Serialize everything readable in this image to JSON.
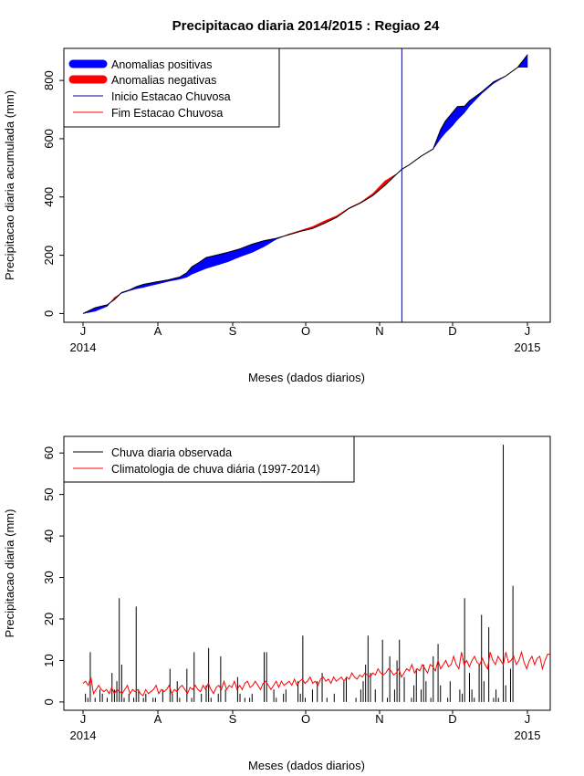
{
  "colors": {
    "positive": "#0000ff",
    "negative": "#ff0000",
    "rain_start": "#00008b",
    "rain_end": "#ff0000",
    "observed": "#000000",
    "climatology": "#ff0000"
  },
  "chart_data": [
    {
      "type": "area",
      "title": "Precipitacao diaria 2014/2015 : Regiao 24",
      "xlabel": "Meses (dados diarios)",
      "ylabel": "Precipitacao diaria acumulada (mm)",
      "x_ticks": [
        "J",
        "A",
        "S",
        "O",
        "N",
        "D",
        "J"
      ],
      "year_labels": [
        "2014",
        "2015"
      ],
      "ylim": [
        -30,
        910
      ],
      "y_ticks": [
        0,
        200,
        400,
        600,
        800
      ],
      "grid": false,
      "legend_position": "top-left",
      "legend": [
        "Anomalias positivas",
        "Anomalias negativas",
        "Inicio Estacao Chuvosa",
        "Fim Estacao Chuvosa"
      ],
      "days_total": 184,
      "rain_start_day": 132,
      "observed_cumulative": [
        [
          0,
          0
        ],
        [
          5,
          20
        ],
        [
          10,
          30
        ],
        [
          13,
          48
        ],
        [
          16,
          72
        ],
        [
          19,
          80
        ],
        [
          22,
          92
        ],
        [
          25,
          100
        ],
        [
          30,
          108
        ],
        [
          35,
          115
        ],
        [
          40,
          125
        ],
        [
          43,
          140
        ],
        [
          45,
          160
        ],
        [
          48,
          175
        ],
        [
          51,
          192
        ],
        [
          55,
          200
        ],
        [
          60,
          210
        ],
        [
          65,
          222
        ],
        [
          70,
          238
        ],
        [
          75,
          250
        ],
        [
          80,
          258
        ],
        [
          85,
          270
        ],
        [
          90,
          282
        ],
        [
          95,
          292
        ],
        [
          100,
          310
        ],
        [
          105,
          330
        ],
        [
          110,
          360
        ],
        [
          115,
          380
        ],
        [
          120,
          405
        ],
        [
          125,
          440
        ],
        [
          130,
          480
        ],
        [
          132,
          495
        ],
        [
          135,
          510
        ],
        [
          140,
          540
        ],
        [
          145,
          565
        ],
        [
          148,
          630
        ],
        [
          150,
          660
        ],
        [
          153,
          690
        ],
        [
          155,
          710
        ],
        [
          158,
          712
        ],
        [
          160,
          730
        ],
        [
          165,
          760
        ],
        [
          170,
          795
        ],
        [
          175,
          815
        ],
        [
          180,
          845
        ],
        [
          184,
          888
        ]
      ],
      "climatology_cumulative": [
        [
          0,
          0
        ],
        [
          5,
          8
        ],
        [
          10,
          25
        ],
        [
          13,
          55
        ],
        [
          16,
          70
        ],
        [
          19,
          78
        ],
        [
          22,
          85
        ],
        [
          25,
          90
        ],
        [
          30,
          100
        ],
        [
          35,
          110
        ],
        [
          40,
          118
        ],
        [
          43,
          125
        ],
        [
          45,
          135
        ],
        [
          48,
          145
        ],
        [
          51,
          155
        ],
        [
          55,
          165
        ],
        [
          60,
          178
        ],
        [
          65,
          195
        ],
        [
          70,
          210
        ],
        [
          75,
          230
        ],
        [
          80,
          255
        ],
        [
          85,
          272
        ],
        [
          90,
          285
        ],
        [
          95,
          298
        ],
        [
          100,
          318
        ],
        [
          105,
          335
        ],
        [
          110,
          362
        ],
        [
          115,
          382
        ],
        [
          120,
          412
        ],
        [
          125,
          455
        ],
        [
          130,
          480
        ],
        [
          132,
          495
        ],
        [
          135,
          510
        ],
        [
          140,
          540
        ],
        [
          145,
          565
        ],
        [
          148,
          600
        ],
        [
          150,
          620
        ],
        [
          153,
          645
        ],
        [
          155,
          665
        ],
        [
          158,
          690
        ],
        [
          160,
          712
        ],
        [
          165,
          755
        ],
        [
          170,
          790
        ],
        [
          175,
          815
        ],
        [
          180,
          845
        ],
        [
          184,
          845
        ]
      ]
    },
    {
      "type": "line",
      "xlabel": "Meses (dados diarios)",
      "ylabel": "Precipitacao diaria (mm)",
      "x_ticks": [
        "J",
        "A",
        "S",
        "O",
        "N",
        "D",
        "J"
      ],
      "year_labels": [
        "2014",
        "2015"
      ],
      "ylim": [
        -2,
        64
      ],
      "y_ticks": [
        0,
        10,
        20,
        30,
        40,
        50,
        60
      ],
      "grid": false,
      "legend_position": "top-left",
      "legend": [
        "Chuva diaria observada",
        "Climatologia de chuva diária (1997-2014)"
      ],
      "days_total": 184,
      "observed_daily": [
        0,
        2,
        1,
        12,
        0,
        1,
        0,
        3,
        2,
        0,
        1,
        0,
        7,
        3,
        5,
        25,
        9,
        1,
        0,
        2,
        0,
        1,
        23,
        3,
        0,
        1,
        2,
        0,
        0,
        1,
        1,
        0,
        0,
        3,
        0,
        0,
        8,
        2,
        0,
        5,
        1,
        0,
        0,
        8,
        0,
        1,
        12,
        0,
        0,
        2,
        0,
        4,
        13,
        1,
        0,
        0,
        2,
        11,
        0,
        3,
        0,
        0,
        0,
        0,
        6,
        2,
        0,
        1,
        0,
        1,
        2,
        0,
        0,
        0,
        0,
        12,
        12,
        0,
        0,
        3,
        1,
        0,
        0,
        2,
        3,
        0,
        0,
        0,
        0,
        5,
        2,
        16,
        1,
        0,
        0,
        3,
        0,
        5,
        0,
        7,
        0,
        1,
        0,
        0,
        2,
        0,
        0,
        0,
        5,
        6,
        0,
        0,
        0,
        1,
        0,
        3,
        5,
        9,
        16,
        7,
        0,
        3,
        0,
        0,
        15,
        0,
        1,
        11,
        0,
        3,
        10,
        15,
        0,
        6,
        0,
        0,
        1,
        4,
        8,
        0,
        3,
        9,
        5,
        0,
        1,
        11,
        0,
        14,
        4,
        0,
        0,
        1,
        5,
        0,
        0,
        0,
        3,
        2,
        25,
        0,
        7,
        3,
        1,
        0,
        9,
        21,
        5,
        0,
        18,
        0,
        1,
        3,
        1,
        0,
        62,
        4,
        0,
        8,
        28,
        0
      ],
      "climatology_daily": [
        4.5,
        5,
        4,
        6,
        2,
        3,
        4,
        3,
        2.5,
        3,
        2,
        3.5,
        2,
        3,
        2.5,
        2,
        3,
        4,
        2,
        3,
        2.5,
        3,
        2,
        1.5,
        3,
        2,
        2.5,
        3,
        4,
        2,
        3,
        2.5,
        3,
        4,
        2,
        3,
        2.5,
        3.5,
        4,
        3,
        2,
        3.5,
        3,
        4,
        3,
        2.5,
        4,
        3,
        4.5,
        3,
        2,
        3.5,
        4,
        3,
        5,
        3,
        4,
        3.5,
        5,
        3,
        4,
        3,
        4.5,
        5,
        3.5,
        4,
        5,
        4,
        3,
        4.5,
        5,
        4,
        3,
        4,
        5,
        3.5,
        5,
        4,
        4.5,
        5,
        4,
        5.5,
        4,
        5,
        5.5,
        4.5,
        5,
        6,
        4.5,
        5,
        4,
        5.5,
        6,
        5,
        5.5,
        4.5,
        6,
        5,
        5.5,
        6,
        5,
        6,
        5.5,
        7,
        6,
        5.5,
        6.5,
        6,
        7,
        6.5,
        6,
        7,
        6.5,
        8,
        7,
        6.5,
        7,
        8,
        7.5,
        6.5,
        7,
        8,
        6,
        7,
        8,
        7.5,
        9,
        7,
        8,
        7.5,
        9,
        8,
        7,
        9,
        8.5,
        7.5,
        10,
        8,
        9,
        10,
        8.5,
        9,
        11,
        9,
        8,
        12,
        9,
        10,
        8.5,
        10,
        11,
        9.5,
        9,
        10.5,
        9,
        8,
        12,
        10,
        9,
        11,
        10,
        9,
        12,
        9.5,
        10,
        11,
        9,
        10,
        12,
        9.5,
        8,
        10,
        11,
        9,
        10.5,
        11,
        8,
        10,
        11.5,
        11.5
      ]
    }
  ]
}
